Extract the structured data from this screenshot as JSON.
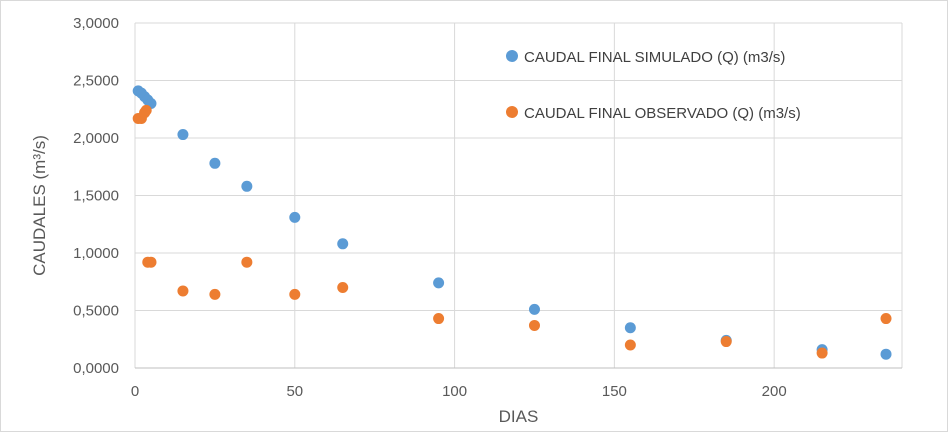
{
  "chart_data": {
    "type": "scatter",
    "xlabel": "DIAS",
    "ylabel": "CAUDALES (m³/s)",
    "xlim": [
      0,
      240
    ],
    "ylim": [
      0,
      3
    ],
    "x_ticks": [
      "0",
      "50",
      "100",
      "150",
      "200"
    ],
    "y_ticks": [
      "0,0000",
      "0,5000",
      "1,0000",
      "1,5000",
      "2,0000",
      "2,5000",
      "3,0000"
    ],
    "grid": "major",
    "legend_position": "top-right",
    "series": [
      {
        "name": "CAUDAL FINAL SIMULADO (Q) (m3/s)",
        "color": "#5b9bd5",
        "points": [
          [
            1,
            2.41
          ],
          [
            2,
            2.39
          ],
          [
            3,
            2.36
          ],
          [
            4,
            2.33
          ],
          [
            5,
            2.3
          ],
          [
            15,
            2.03
          ],
          [
            25,
            1.78
          ],
          [
            35,
            1.58
          ],
          [
            50,
            1.31
          ],
          [
            65,
            1.08
          ],
          [
            95,
            0.74
          ],
          [
            125,
            0.51
          ],
          [
            155,
            0.35
          ],
          [
            185,
            0.24
          ],
          [
            215,
            0.16
          ],
          [
            235,
            0.12
          ]
        ]
      },
      {
        "name": "CAUDAL FINAL OBSERVADO (Q) (m3/s)",
        "color": "#ed7d31",
        "points": [
          [
            1,
            2.17
          ],
          [
            2,
            2.17
          ],
          [
            3,
            2.22
          ],
          [
            3.5,
            2.24
          ],
          [
            4,
            0.92
          ],
          [
            5,
            0.92
          ],
          [
            15,
            0.67
          ],
          [
            25,
            0.64
          ],
          [
            35,
            0.92
          ],
          [
            50,
            0.64
          ],
          [
            65,
            0.7
          ],
          [
            95,
            0.43
          ],
          [
            125,
            0.37
          ],
          [
            155,
            0.2
          ],
          [
            185,
            0.23
          ],
          [
            215,
            0.13
          ],
          [
            235,
            0.43
          ]
        ]
      }
    ]
  }
}
